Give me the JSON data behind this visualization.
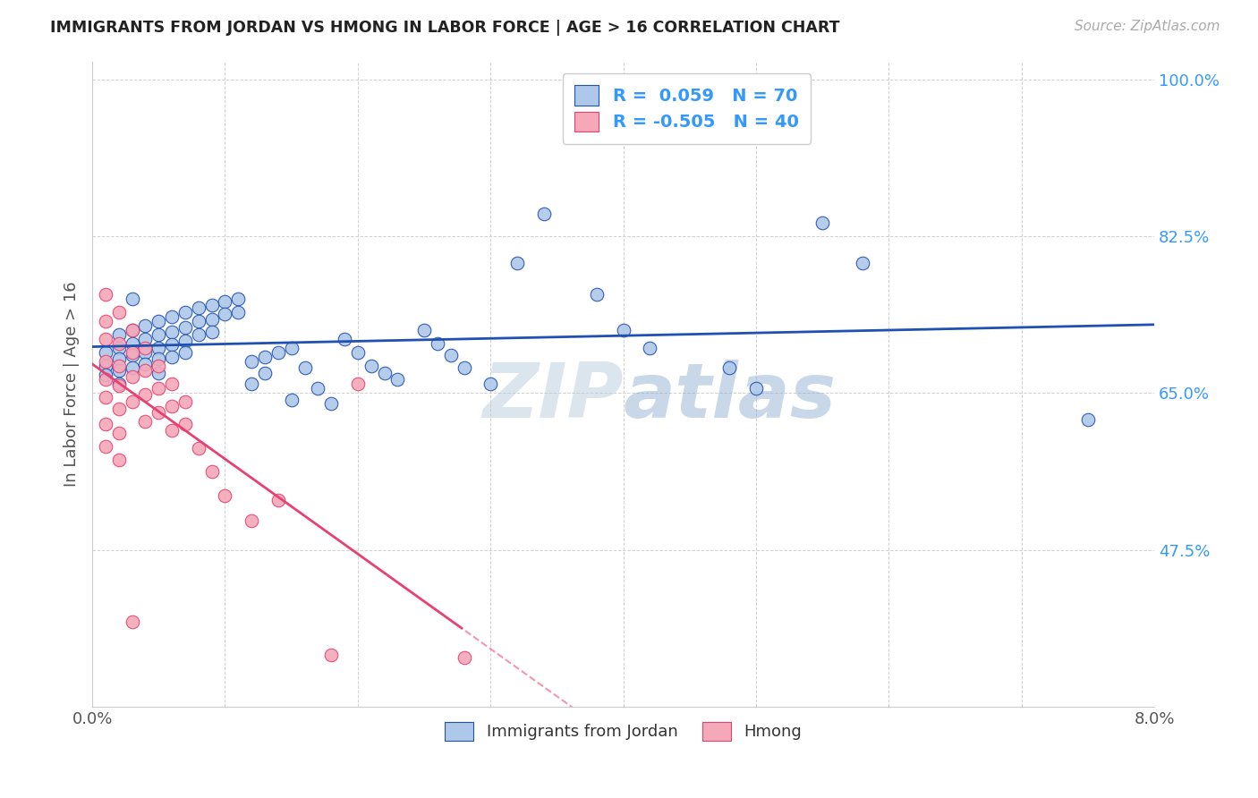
{
  "title": "IMMIGRANTS FROM JORDAN VS HMONG IN LABOR FORCE | AGE > 16 CORRELATION CHART",
  "source": "Source: ZipAtlas.com",
  "ylabel": "In Labor Force | Age > 16",
  "xlim": [
    0.0,
    0.08
  ],
  "ylim": [
    0.3,
    1.02
  ],
  "yticks": [
    0.475,
    0.65,
    0.825,
    1.0
  ],
  "ytick_labels": [
    "47.5%",
    "65.0%",
    "82.5%",
    "100.0%"
  ],
  "xticks": [
    0.0,
    0.01,
    0.02,
    0.03,
    0.04,
    0.05,
    0.06,
    0.07,
    0.08
  ],
  "xtick_labels": [
    "0.0%",
    "",
    "",
    "",
    "",
    "",
    "",
    "",
    "8.0%"
  ],
  "jordan_R": 0.059,
  "jordan_N": 70,
  "hmong_R": -0.505,
  "hmong_N": 40,
  "jordan_color": "#adc8e8",
  "hmong_color": "#f4a8b8",
  "jordan_line_color": "#2050b0",
  "hmong_line_color": "#e84070",
  "watermark": "ZIPAtlas",
  "jordan_points": [
    [
      0.001,
      0.695
    ],
    [
      0.001,
      0.68
    ],
    [
      0.001,
      0.67
    ],
    [
      0.002,
      0.715
    ],
    [
      0.002,
      0.7
    ],
    [
      0.002,
      0.688
    ],
    [
      0.002,
      0.675
    ],
    [
      0.002,
      0.66
    ],
    [
      0.003,
      0.72
    ],
    [
      0.003,
      0.705
    ],
    [
      0.003,
      0.692
    ],
    [
      0.003,
      0.678
    ],
    [
      0.003,
      0.755
    ],
    [
      0.004,
      0.725
    ],
    [
      0.004,
      0.71
    ],
    [
      0.004,
      0.695
    ],
    [
      0.004,
      0.682
    ],
    [
      0.005,
      0.73
    ],
    [
      0.005,
      0.715
    ],
    [
      0.005,
      0.7
    ],
    [
      0.005,
      0.688
    ],
    [
      0.005,
      0.672
    ],
    [
      0.006,
      0.735
    ],
    [
      0.006,
      0.718
    ],
    [
      0.006,
      0.704
    ],
    [
      0.006,
      0.69
    ],
    [
      0.007,
      0.74
    ],
    [
      0.007,
      0.723
    ],
    [
      0.007,
      0.708
    ],
    [
      0.007,
      0.695
    ],
    [
      0.008,
      0.745
    ],
    [
      0.008,
      0.73
    ],
    [
      0.008,
      0.715
    ],
    [
      0.009,
      0.748
    ],
    [
      0.009,
      0.732
    ],
    [
      0.009,
      0.718
    ],
    [
      0.01,
      0.752
    ],
    [
      0.01,
      0.738
    ],
    [
      0.011,
      0.755
    ],
    [
      0.011,
      0.74
    ],
    [
      0.012,
      0.685
    ],
    [
      0.012,
      0.66
    ],
    [
      0.013,
      0.69
    ],
    [
      0.013,
      0.672
    ],
    [
      0.014,
      0.695
    ],
    [
      0.015,
      0.7
    ],
    [
      0.015,
      0.642
    ],
    [
      0.016,
      0.678
    ],
    [
      0.017,
      0.655
    ],
    [
      0.018,
      0.638
    ],
    [
      0.019,
      0.71
    ],
    [
      0.02,
      0.695
    ],
    [
      0.021,
      0.68
    ],
    [
      0.022,
      0.672
    ],
    [
      0.023,
      0.665
    ],
    [
      0.025,
      0.72
    ],
    [
      0.026,
      0.705
    ],
    [
      0.027,
      0.692
    ],
    [
      0.028,
      0.678
    ],
    [
      0.03,
      0.66
    ],
    [
      0.032,
      0.795
    ],
    [
      0.034,
      0.85
    ],
    [
      0.038,
      0.76
    ],
    [
      0.04,
      0.72
    ],
    [
      0.042,
      0.7
    ],
    [
      0.048,
      0.678
    ],
    [
      0.05,
      0.655
    ],
    [
      0.055,
      0.84
    ],
    [
      0.058,
      0.795
    ],
    [
      0.075,
      0.62
    ]
  ],
  "hmong_points": [
    [
      0.001,
      0.76
    ],
    [
      0.001,
      0.73
    ],
    [
      0.001,
      0.71
    ],
    [
      0.001,
      0.685
    ],
    [
      0.001,
      0.665
    ],
    [
      0.001,
      0.645
    ],
    [
      0.001,
      0.615
    ],
    [
      0.001,
      0.59
    ],
    [
      0.002,
      0.74
    ],
    [
      0.002,
      0.705
    ],
    [
      0.002,
      0.68
    ],
    [
      0.002,
      0.658
    ],
    [
      0.002,
      0.632
    ],
    [
      0.002,
      0.605
    ],
    [
      0.002,
      0.575
    ],
    [
      0.003,
      0.72
    ],
    [
      0.003,
      0.695
    ],
    [
      0.003,
      0.668
    ],
    [
      0.003,
      0.64
    ],
    [
      0.003,
      0.395
    ],
    [
      0.004,
      0.7
    ],
    [
      0.004,
      0.675
    ],
    [
      0.004,
      0.648
    ],
    [
      0.004,
      0.618
    ],
    [
      0.005,
      0.68
    ],
    [
      0.005,
      0.655
    ],
    [
      0.005,
      0.628
    ],
    [
      0.006,
      0.66
    ],
    [
      0.006,
      0.635
    ],
    [
      0.006,
      0.608
    ],
    [
      0.007,
      0.64
    ],
    [
      0.007,
      0.615
    ],
    [
      0.008,
      0.588
    ],
    [
      0.009,
      0.562
    ],
    [
      0.01,
      0.535
    ],
    [
      0.012,
      0.508
    ],
    [
      0.014,
      0.53
    ],
    [
      0.018,
      0.358
    ],
    [
      0.02,
      0.66
    ],
    [
      0.028,
      0.355
    ]
  ]
}
